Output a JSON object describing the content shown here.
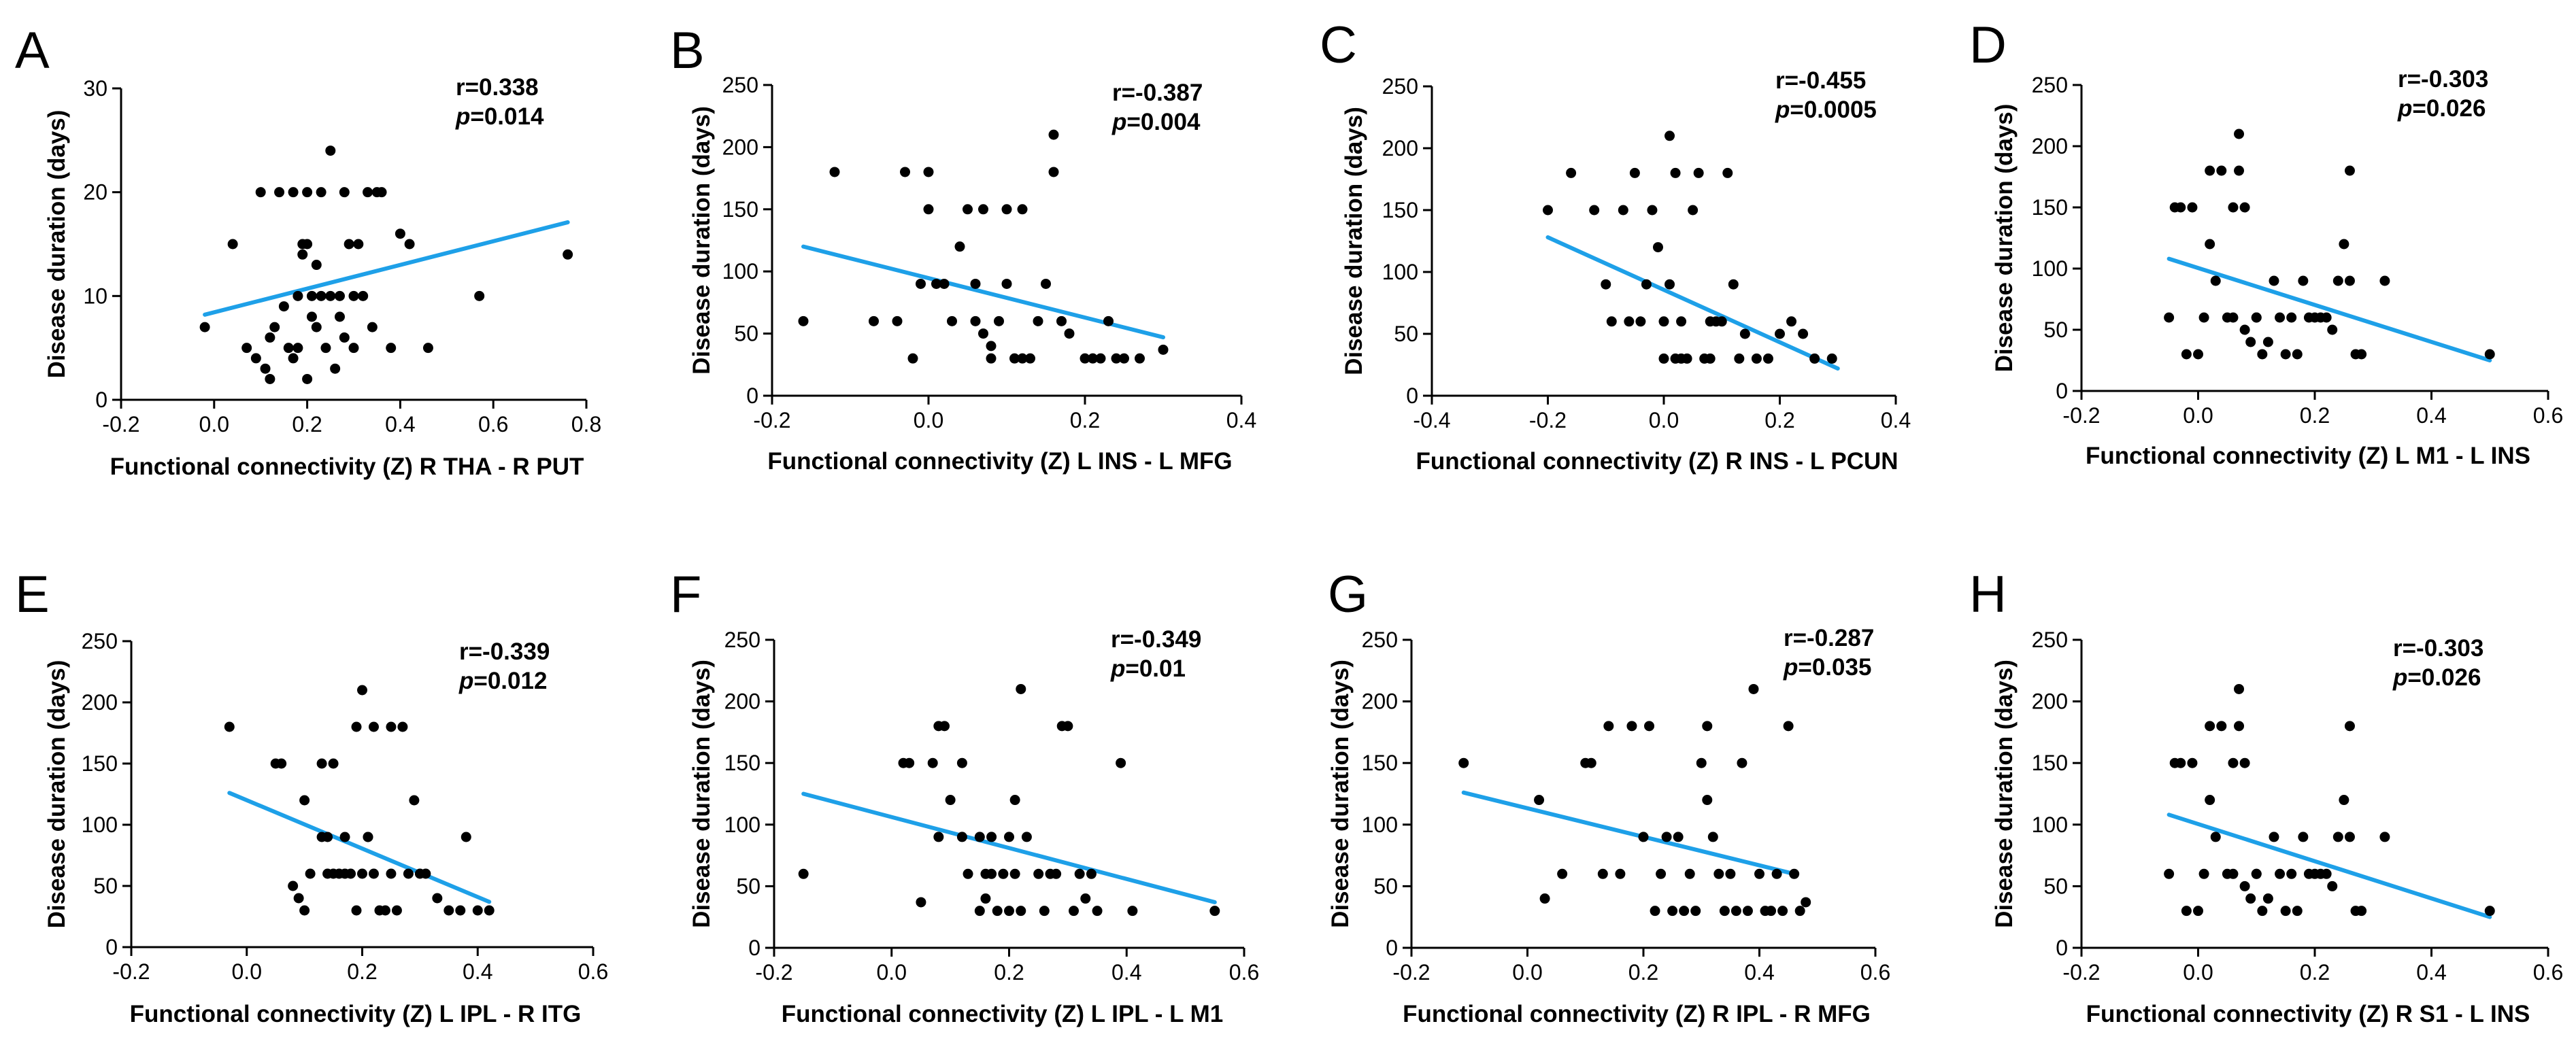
{
  "colors": {
    "points": "#000000",
    "fit_line": "#1EA0E8",
    "axes": "#000000"
  },
  "chart_data": [
    {
      "type": "scatter",
      "panel": "A",
      "xlabel": "Functional connectivity (Z) R THA - R PUT",
      "ylabel": "Disease duration (days)",
      "xlim": [
        -0.2,
        0.8
      ],
      "ylim": [
        0,
        30
      ],
      "xticks": [
        -0.2,
        0,
        0.2,
        0.4,
        0.6,
        0.8
      ],
      "xtick_labels": [
        "-0.2",
        "0.0",
        "0.2",
        "0.4",
        "0.6",
        "0.8"
      ],
      "yticks": [
        0,
        10,
        20,
        30
      ],
      "ytick_labels": [
        "0",
        "10",
        "20",
        "30"
      ],
      "r_text": "r=0.338",
      "p_label": "p",
      "p_value": "=0.014",
      "fit": {
        "x": [
          -0.02,
          0.76
        ],
        "y": [
          8.2,
          17.1
        ]
      },
      "points": {
        "x": [
          -0.02,
          0.04,
          0.07,
          0.09,
          0.1,
          0.11,
          0.12,
          0.12,
          0.13,
          0.14,
          0.15,
          0.16,
          0.17,
          0.17,
          0.18,
          0.18,
          0.19,
          0.19,
          0.2,
          0.2,
          0.2,
          0.21,
          0.21,
          0.22,
          0.22,
          0.23,
          0.23,
          0.24,
          0.25,
          0.25,
          0.26,
          0.27,
          0.27,
          0.28,
          0.28,
          0.29,
          0.3,
          0.3,
          0.31,
          0.32,
          0.33,
          0.34,
          0.35,
          0.36,
          0.38,
          0.4,
          0.42,
          0.46,
          0.57,
          0.76
        ],
        "y": [
          7,
          15,
          5,
          4,
          20,
          3,
          6,
          2,
          7,
          20,
          9,
          5,
          20,
          4,
          5,
          10,
          15,
          14,
          20,
          15,
          2,
          8,
          10,
          7,
          13,
          20,
          10,
          5,
          10,
          24,
          3,
          10,
          8,
          20,
          6,
          15,
          10,
          5,
          15,
          10,
          20,
          7,
          20,
          20,
          5,
          16,
          15,
          5,
          10,
          14
        ]
      }
    },
    {
      "type": "scatter",
      "panel": "B",
      "xlabel": "Functional connectivity (Z) L INS - L MFG",
      "ylabel": "Disease duration (days)",
      "xlim": [
        -0.2,
        0.4
      ],
      "ylim": [
        0,
        250
      ],
      "xticks": [
        -0.2,
        0,
        0.2,
        0.4
      ],
      "xtick_labels": [
        "-0.2",
        "0.0",
        "0.2",
        "0.4"
      ],
      "yticks": [
        0,
        50,
        100,
        150,
        200,
        250
      ],
      "ytick_labels": [
        "0",
        "50",
        "100",
        "150",
        "200",
        "250"
      ],
      "r_text": "r=-0.387",
      "p_label": "p",
      "p_value": "=0.004",
      "fit": {
        "x": [
          -0.16,
          0.3
        ],
        "y": [
          120,
          47
        ]
      },
      "points": {
        "x": [
          -0.16,
          -0.12,
          -0.07,
          -0.04,
          -0.03,
          -0.02,
          -0.01,
          0,
          0,
          0.01,
          0.02,
          0.03,
          0.04,
          0.05,
          0.06,
          0.06,
          0.07,
          0.07,
          0.08,
          0.08,
          0.09,
          0.1,
          0.1,
          0.11,
          0.12,
          0.12,
          0.13,
          0.14,
          0.15,
          0.16,
          0.16,
          0.17,
          0.18,
          0.2,
          0.21,
          0.22,
          0.23,
          0.24,
          0.25,
          0.27,
          0.3
        ],
        "y": [
          60,
          180,
          60,
          60,
          180,
          30,
          90,
          150,
          180,
          90,
          90,
          60,
          120,
          150,
          60,
          90,
          150,
          50,
          40,
          30,
          60,
          150,
          90,
          30,
          30,
          150,
          30,
          60,
          90,
          180,
          210,
          60,
          50,
          30,
          30,
          30,
          60,
          30,
          30,
          30,
          37
        ]
      }
    },
    {
      "type": "scatter",
      "panel": "C",
      "xlabel": "Functional connectivity (Z) R INS - L PCUN",
      "ylabel": "Disease duration (days)",
      "xlim": [
        -0.4,
        0.4
      ],
      "ylim": [
        0,
        250
      ],
      "xticks": [
        -0.4,
        -0.2,
        0,
        0.2,
        0.4
      ],
      "xtick_labels": [
        "-0.4",
        "-0.2",
        "0.0",
        "0.2",
        "0.4"
      ],
      "yticks": [
        0,
        50,
        100,
        150,
        200,
        250
      ],
      "ytick_labels": [
        "0",
        "50",
        "100",
        "150",
        "200",
        "250"
      ],
      "r_text": "r=-0.455",
      "p_label": "p",
      "p_value": "=0.0005",
      "fit": {
        "x": [
          -0.2,
          0.3
        ],
        "y": [
          128,
          22
        ]
      },
      "points": {
        "x": [
          -0.2,
          -0.16,
          -0.12,
          -0.1,
          -0.09,
          -0.07,
          -0.06,
          -0.05,
          -0.04,
          -0.03,
          -0.02,
          -0.01,
          0,
          0,
          0.01,
          0.01,
          0.02,
          0.02,
          0.03,
          0.03,
          0.04,
          0.05,
          0.06,
          0.07,
          0.08,
          0.08,
          0.09,
          0.1,
          0.11,
          0.12,
          0.13,
          0.14,
          0.16,
          0.18,
          0.2,
          0.22,
          0.24,
          0.26,
          0.29
        ],
        "y": [
          150,
          180,
          150,
          90,
          60,
          150,
          60,
          180,
          60,
          90,
          150,
          120,
          30,
          60,
          210,
          90,
          180,
          30,
          60,
          30,
          30,
          150,
          180,
          30,
          30,
          60,
          60,
          60,
          180,
          90,
          30,
          50,
          30,
          30,
          50,
          60,
          50,
          30,
          30
        ]
      }
    },
    {
      "type": "scatter",
      "panel": "D",
      "xlabel": "Functional connectivity (Z) L M1 - L INS",
      "ylabel": "Disease duration (days)",
      "xlim": [
        -0.2,
        0.6
      ],
      "ylim": [
        0,
        250
      ],
      "xticks": [
        -0.2,
        0,
        0.2,
        0.4,
        0.6
      ],
      "xtick_labels": [
        "-0.2",
        "0.0",
        "0.2",
        "0.4",
        "0.6"
      ],
      "yticks": [
        0,
        50,
        100,
        150,
        200,
        250
      ],
      "ytick_labels": [
        "0",
        "50",
        "100",
        "150",
        "200",
        "250"
      ],
      "r_text": "r=-0.303",
      "p_label": "p",
      "p_value": "=0.026",
      "fit": {
        "x": [
          -0.05,
          0.5
        ],
        "y": [
          108,
          25
        ]
      },
      "points": {
        "x": [
          -0.05,
          -0.04,
          -0.03,
          -0.02,
          -0.01,
          0,
          0.01,
          0.02,
          0.02,
          0.03,
          0.04,
          0.05,
          0.06,
          0.06,
          0.07,
          0.07,
          0.08,
          0.08,
          0.09,
          0.1,
          0.1,
          0.11,
          0.12,
          0.13,
          0.14,
          0.15,
          0.16,
          0.17,
          0.18,
          0.19,
          0.2,
          0.21,
          0.22,
          0.23,
          0.24,
          0.25,
          0.26,
          0.26,
          0.27,
          0.28,
          0.32,
          0.5
        ],
        "y": [
          60,
          150,
          150,
          30,
          150,
          30,
          60,
          180,
          120,
          90,
          180,
          60,
          150,
          60,
          180,
          210,
          150,
          50,
          40,
          60,
          60,
          30,
          40,
          90,
          60,
          30,
          60,
          30,
          90,
          60,
          60,
          60,
          60,
          50,
          90,
          120,
          90,
          180,
          30,
          30,
          90,
          30
        ]
      }
    },
    {
      "type": "scatter",
      "panel": "E",
      "xlabel": "Functional connectivity (Z) L IPL - R ITG",
      "ylabel": "Disease duration (days)",
      "xlim": [
        -0.2,
        0.6
      ],
      "ylim": [
        0,
        250
      ],
      "xticks": [
        -0.2,
        0,
        0.2,
        0.4,
        0.6
      ],
      "xtick_labels": [
        "-0.2",
        "0.0",
        "0.2",
        "0.4",
        "0.6"
      ],
      "yticks": [
        0,
        50,
        100,
        150,
        200,
        250
      ],
      "ytick_labels": [
        "0",
        "50",
        "100",
        "150",
        "200",
        "250"
      ],
      "r_text": "r=-0.339",
      "p_label": "p",
      "p_value": "=0.012",
      "fit": {
        "x": [
          -0.03,
          0.42
        ],
        "y": [
          126,
          37
        ]
      },
      "points": {
        "x": [
          -0.03,
          0.05,
          0.06,
          0.08,
          0.09,
          0.1,
          0.1,
          0.11,
          0.13,
          0.13,
          0.14,
          0.14,
          0.15,
          0.15,
          0.16,
          0.17,
          0.17,
          0.18,
          0.19,
          0.19,
          0.2,
          0.2,
          0.21,
          0.21,
          0.22,
          0.22,
          0.23,
          0.24,
          0.25,
          0.25,
          0.26,
          0.27,
          0.28,
          0.29,
          0.3,
          0.31,
          0.33,
          0.35,
          0.37,
          0.38,
          0.4,
          0.42
        ],
        "y": [
          180,
          150,
          150,
          50,
          40,
          30,
          120,
          60,
          150,
          90,
          90,
          60,
          150,
          60,
          60,
          60,
          90,
          60,
          180,
          30,
          60,
          210,
          90,
          90,
          180,
          60,
          30,
          30,
          180,
          60,
          30,
          180,
          60,
          120,
          60,
          60,
          40,
          30,
          30,
          90,
          30,
          30
        ]
      }
    },
    {
      "type": "scatter",
      "panel": "F",
      "xlabel": "Functional connectivity (Z) L IPL - L M1",
      "ylabel": "Disease duration (days)",
      "xlim": [
        -0.2,
        0.6
      ],
      "ylim": [
        0,
        250
      ],
      "xticks": [
        -0.2,
        0,
        0.2,
        0.4,
        0.6
      ],
      "xtick_labels": [
        "-0.2",
        "0.0",
        "0.2",
        "0.4",
        "0.6"
      ],
      "yticks": [
        0,
        50,
        100,
        150,
        200,
        250
      ],
      "ytick_labels": [
        "0",
        "50",
        "100",
        "150",
        "200",
        "250"
      ],
      "r_text": "r=-0.349",
      "p_label": "p",
      "p_value": "=0.01",
      "fit": {
        "x": [
          -0.15,
          0.55
        ],
        "y": [
          125,
          37
        ]
      },
      "points": {
        "x": [
          -0.15,
          0.02,
          0.03,
          0.05,
          0.07,
          0.08,
          0.08,
          0.09,
          0.1,
          0.12,
          0.12,
          0.13,
          0.15,
          0.15,
          0.16,
          0.16,
          0.17,
          0.17,
          0.18,
          0.19,
          0.2,
          0.2,
          0.21,
          0.21,
          0.22,
          0.22,
          0.23,
          0.25,
          0.26,
          0.27,
          0.28,
          0.29,
          0.3,
          0.31,
          0.32,
          0.33,
          0.34,
          0.35,
          0.39,
          0.41,
          0.55
        ],
        "y": [
          60,
          150,
          150,
          37,
          150,
          180,
          90,
          180,
          120,
          150,
          90,
          60,
          30,
          90,
          60,
          40,
          60,
          90,
          30,
          60,
          90,
          30,
          60,
          120,
          210,
          30,
          90,
          60,
          30,
          60,
          60,
          180,
          180,
          30,
          60,
          40,
          60,
          30,
          150,
          30,
          30
        ]
      }
    },
    {
      "type": "scatter",
      "panel": "G",
      "xlabel": "Functional connectivity (Z) R IPL - R MFG",
      "ylabel": "Disease duration (days)",
      "xlim": [
        -0.2,
        0.6
      ],
      "ylim": [
        0,
        250
      ],
      "xticks": [
        -0.2,
        0,
        0.2,
        0.4,
        0.6
      ],
      "xtick_labels": [
        "-0.2",
        "0.0",
        "0.2",
        "0.4",
        "0.6"
      ],
      "yticks": [
        0,
        50,
        100,
        150,
        200,
        250
      ],
      "ytick_labels": [
        "0",
        "50",
        "100",
        "150",
        "200",
        "250"
      ],
      "r_text": "r=-0.287",
      "p_label": "p",
      "p_value": "=0.035",
      "fit": {
        "x": [
          -0.11,
          0.46
        ],
        "y": [
          126,
          60
        ]
      },
      "points": {
        "x": [
          -0.11,
          0.02,
          0.03,
          0.06,
          0.1,
          0.11,
          0.13,
          0.14,
          0.16,
          0.18,
          0.2,
          0.21,
          0.22,
          0.23,
          0.24,
          0.25,
          0.26,
          0.27,
          0.28,
          0.29,
          0.3,
          0.31,
          0.31,
          0.32,
          0.33,
          0.34,
          0.35,
          0.36,
          0.37,
          0.38,
          0.39,
          0.4,
          0.41,
          0.42,
          0.43,
          0.44,
          0.45,
          0.46,
          0.47,
          0.48
        ],
        "y": [
          150,
          120,
          40,
          60,
          150,
          150,
          60,
          180,
          60,
          180,
          90,
          180,
          30,
          60,
          90,
          30,
          90,
          30,
          60,
          30,
          150,
          180,
          120,
          90,
          60,
          30,
          60,
          30,
          150,
          30,
          210,
          60,
          30,
          30,
          60,
          30,
          180,
          60,
          30,
          37
        ]
      }
    },
    {
      "type": "scatter",
      "panel": "H",
      "xlabel": "Functional connectivity (Z) R S1 - L INS",
      "ylabel": "Disease duration (days)",
      "xlim": [
        -0.2,
        0.6
      ],
      "ylim": [
        0,
        250
      ],
      "xticks": [
        -0.2,
        0,
        0.2,
        0.4,
        0.6
      ],
      "xtick_labels": [
        "-0.2",
        "0.0",
        "0.2",
        "0.4",
        "0.6"
      ],
      "yticks": [
        0,
        50,
        100,
        150,
        200,
        250
      ],
      "ytick_labels": [
        "0",
        "50",
        "100",
        "150",
        "200",
        "250"
      ],
      "r_text": "r=-0.303",
      "p_label": "p",
      "p_value": "=0.026",
      "fit": {
        "x": [
          -0.05,
          0.5
        ],
        "y": [
          108,
          25
        ]
      },
      "points": {
        "x": [
          -0.05,
          -0.04,
          -0.03,
          -0.02,
          -0.01,
          0,
          0.01,
          0.02,
          0.02,
          0.03,
          0.04,
          0.05,
          0.06,
          0.06,
          0.07,
          0.07,
          0.08,
          0.08,
          0.09,
          0.1,
          0.1,
          0.11,
          0.12,
          0.13,
          0.14,
          0.15,
          0.16,
          0.17,
          0.18,
          0.19,
          0.2,
          0.21,
          0.22,
          0.23,
          0.24,
          0.25,
          0.26,
          0.26,
          0.27,
          0.28,
          0.32,
          0.5
        ],
        "y": [
          60,
          150,
          150,
          30,
          150,
          30,
          60,
          180,
          120,
          90,
          180,
          60,
          150,
          60,
          180,
          210,
          150,
          50,
          40,
          60,
          60,
          30,
          40,
          90,
          60,
          30,
          60,
          30,
          90,
          60,
          60,
          60,
          60,
          50,
          90,
          120,
          90,
          180,
          30,
          30,
          90,
          30
        ]
      }
    }
  ]
}
